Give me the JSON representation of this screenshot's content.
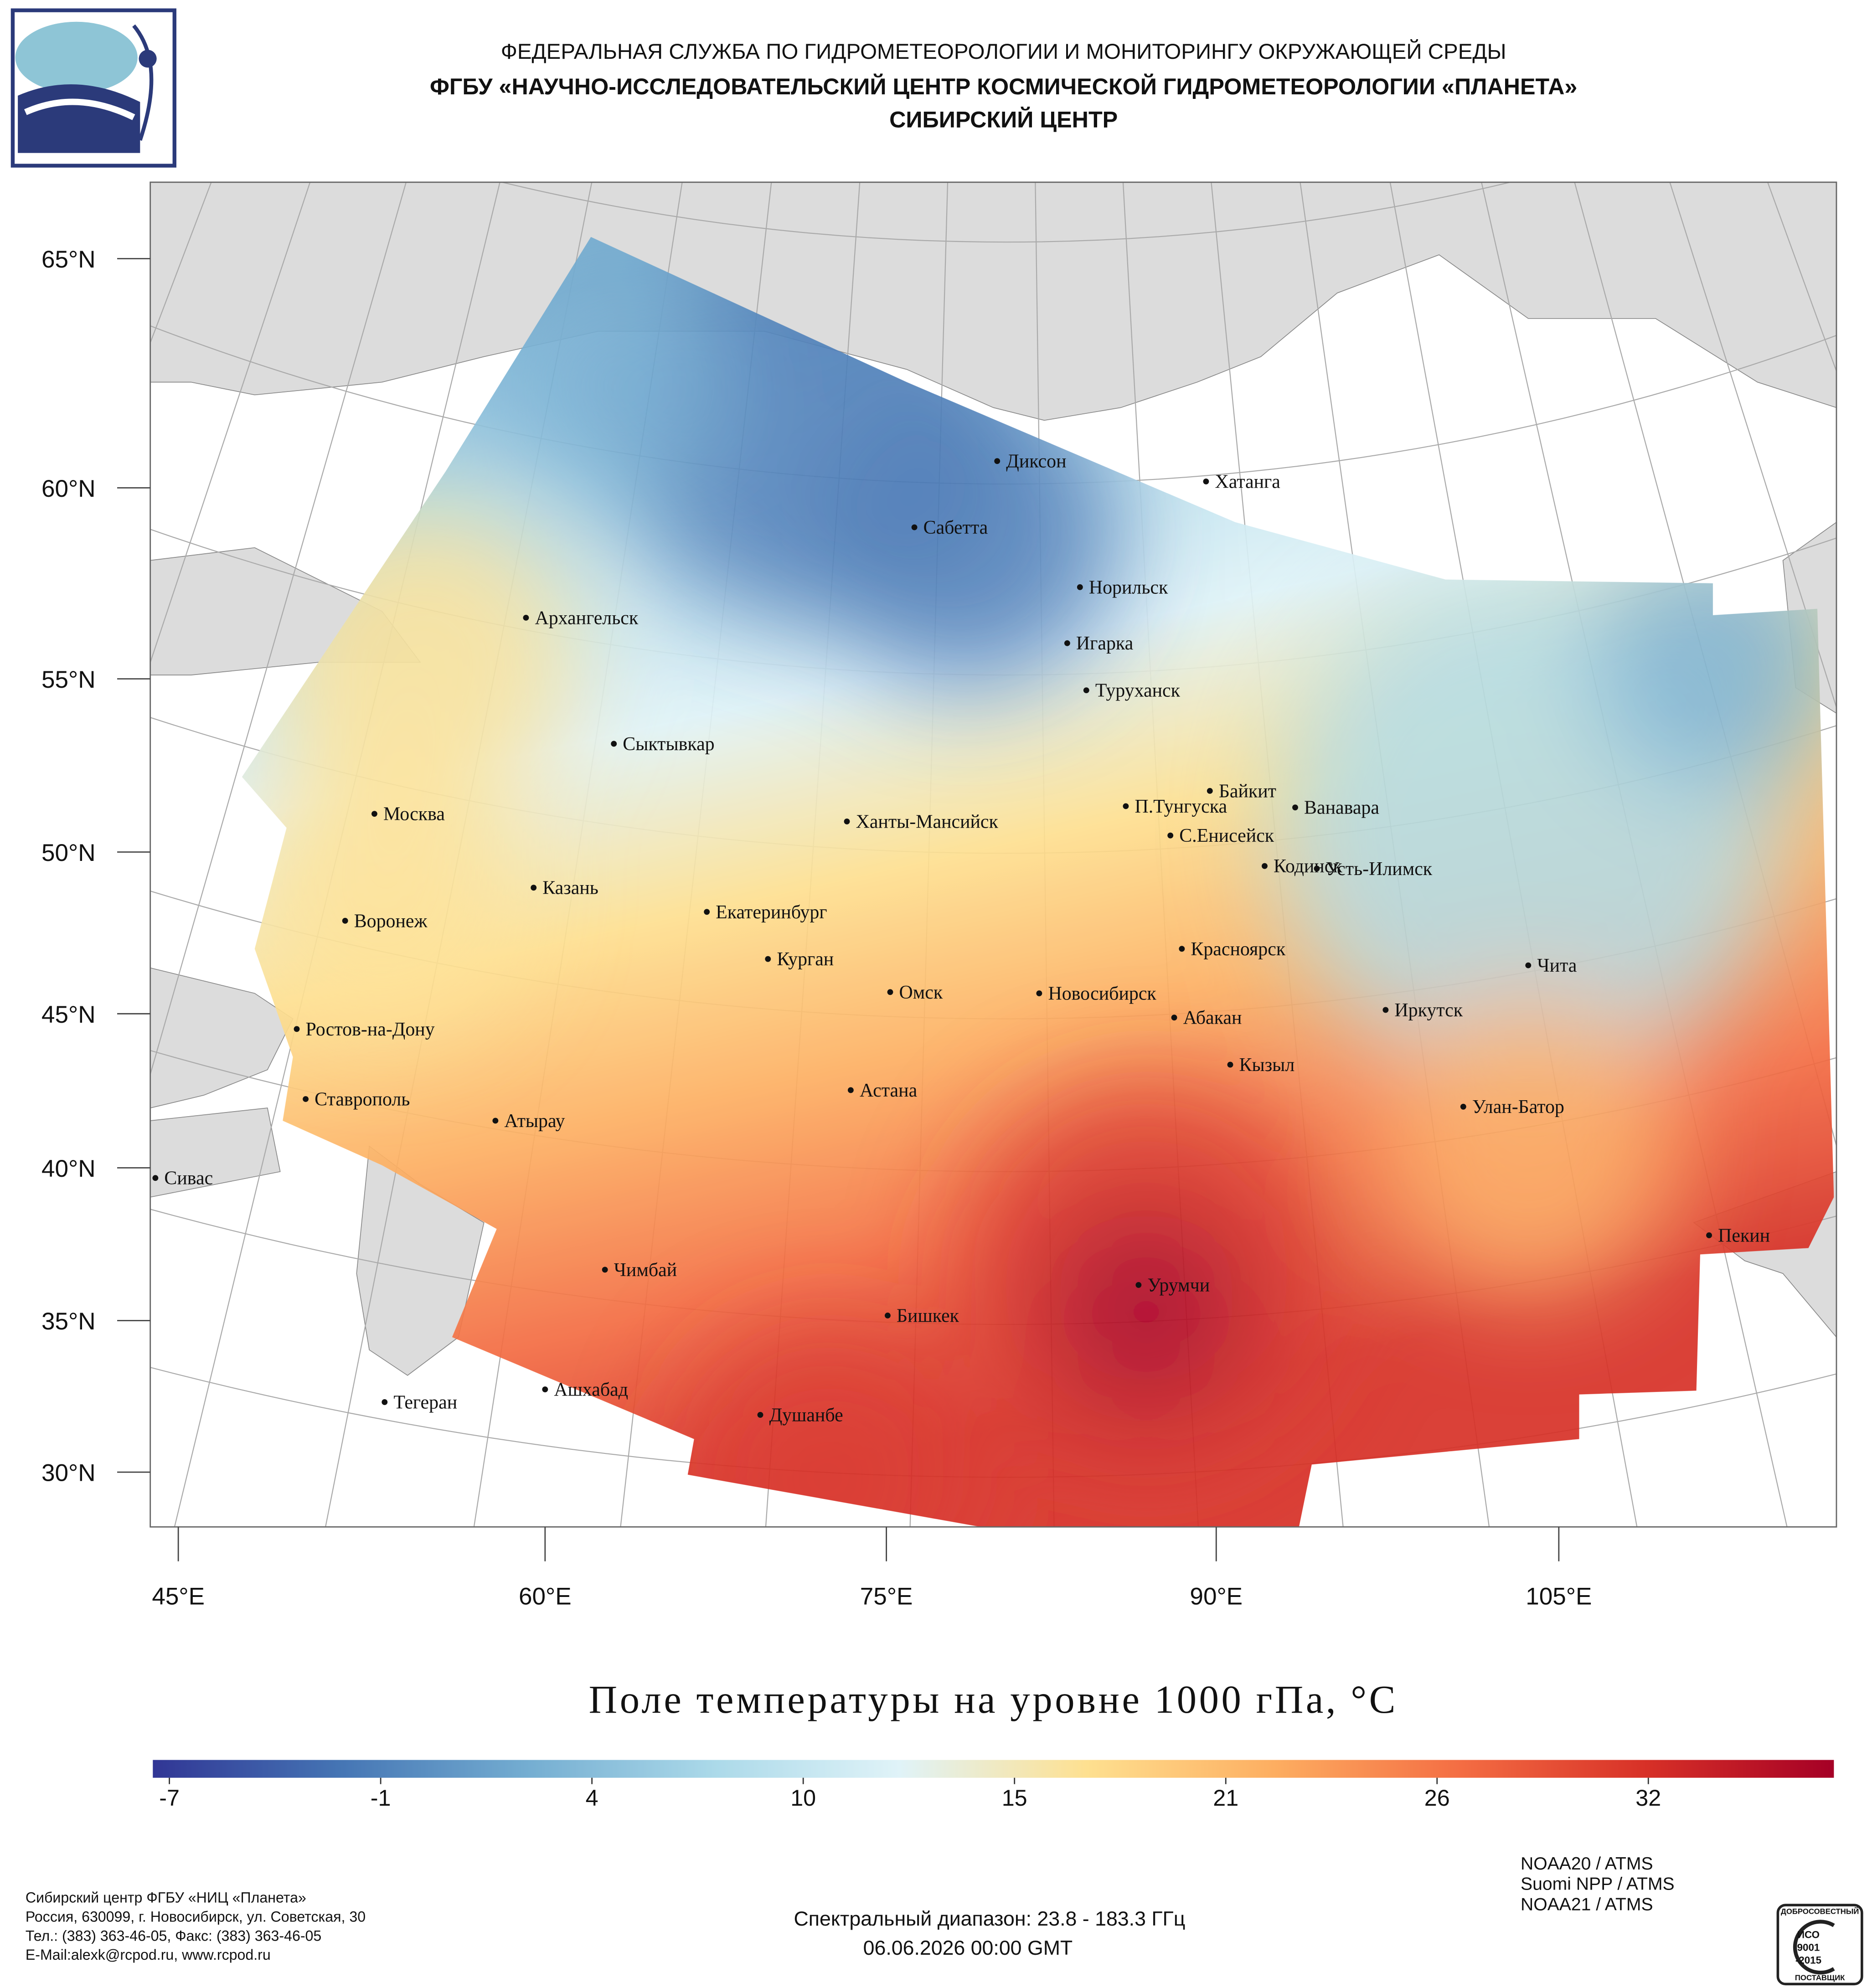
{
  "header": {
    "agency": "ФЕДЕРАЛЬНАЯ СЛУЖБА ПО ГИДРОМЕТЕОРОЛОГИИ И МОНИТОРИНГУ ОКРУЖАЮЩЕЙ СРЕДЫ",
    "institute": "ФГБУ «НАУЧНО-ИССЛЕДОВАТЕЛЬСКИЙ ЦЕНТР КОСМИЧЕСКОЙ ГИДРОМЕТЕОРОЛОГИИ «ПЛАНЕТА»",
    "center": "СИБИРСКИЙ ЦЕНТР"
  },
  "map": {
    "lat_labels": [
      "65°N",
      "60°N",
      "55°N",
      "50°N",
      "45°N",
      "40°N",
      "35°N",
      "30°N"
    ],
    "lon_labels": [
      "45°E",
      "60°E",
      "75°E",
      "90°E",
      "105°E"
    ],
    "cities": [
      "Диксон",
      "Хатанга",
      "Сабетта",
      "Норильск",
      "Архангельск",
      "Игарка",
      "Туруханск",
      "Сыктывкар",
      "Байкит",
      "Москва",
      "П.Тунгуска",
      "Ванавара",
      "Ханты-Мансийск",
      "С.Енисейск",
      "Кодинск",
      "Усть-Илимск",
      "Казань",
      "Екатеринбург",
      "Воронеж",
      "Красноярск",
      "Курган",
      "Чита",
      "Омск",
      "Новосибирск",
      "Иркутск",
      "Абакан",
      "Ростов-на-Дону",
      "Кызыл",
      "Астана",
      "Ставрополь",
      "Улан-Батор",
      "Атырау",
      "Сивас",
      "Пекин",
      "Чимбай",
      "Урумчи",
      "Бишкек",
      "Ашхабад",
      "Тегеран",
      "Душанбе"
    ]
  },
  "colorbar": {
    "title": "Поле температуры на уровне 1000 гПа, °C",
    "ticks": [
      -7,
      -1,
      4,
      10,
      15,
      21,
      26,
      32
    ],
    "colors": [
      "#313695",
      "#4575b4",
      "#74add1",
      "#abd9e9",
      "#e0f3f8",
      "#fee090",
      "#fdae61",
      "#f46d43",
      "#d73027",
      "#a50026"
    ]
  },
  "footer": {
    "address": [
      "Сибирский центр ФГБУ «НИЦ «Планета»",
      "Россия, 630099, г. Новосибирск, ул. Советская, 30",
      "Тел.: (383) 363-46-05, Факс: (383) 363-46-05",
      "E-Mail:alexk@rcpod.ru, www.rcpod.ru"
    ],
    "spectral": "Спектральный диапазон: 23.8 - 183.3 ГГц",
    "datetime": "06.06.2026 00:00 GMT",
    "instruments": [
      "NOAA20 / ATMS",
      "Suomi NPP / ATMS",
      "NOAA21 / ATMS"
    ],
    "iso_logo": [
      "ДОБРОСОВЕСТНЫЙ",
      "ИСО",
      "9001",
      "-2015",
      "ПОСТАВЩИК"
    ]
  }
}
